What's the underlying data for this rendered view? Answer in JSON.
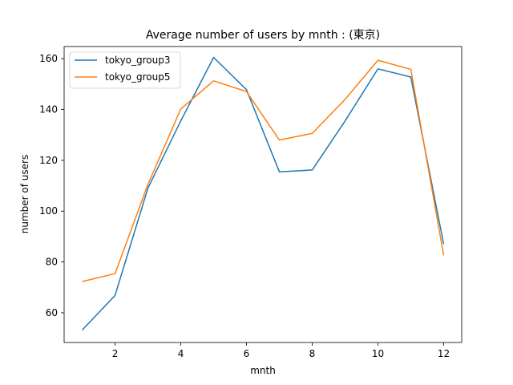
{
  "chart_data": {
    "type": "line",
    "title": "Average number of users by mnth : (東京)",
    "xlabel": "mnth",
    "ylabel": "number of users",
    "x": [
      1,
      2,
      3,
      4,
      5,
      6,
      7,
      8,
      9,
      10,
      11,
      12
    ],
    "xticks": [
      2,
      4,
      6,
      8,
      10,
      12
    ],
    "yticks": [
      60,
      80,
      100,
      120,
      140,
      160
    ],
    "xlim": [
      0.45,
      12.55
    ],
    "ylim": [
      48.3,
      164.8
    ],
    "grid": false,
    "legend_position": "top-left",
    "series": [
      {
        "name": "tokyo_group3",
        "color": "#1f77b4",
        "values": [
          53.2,
          66.8,
          109.0,
          135.5,
          160.5,
          147.8,
          115.5,
          116.2,
          135.5,
          156.0,
          152.8,
          87.0
        ]
      },
      {
        "name": "tokyo_group5",
        "color": "#ff7f0e",
        "values": [
          72.3,
          75.4,
          110.5,
          140.2,
          151.3,
          147.1,
          128.0,
          130.6,
          144.0,
          159.4,
          155.8,
          82.6
        ]
      }
    ]
  }
}
